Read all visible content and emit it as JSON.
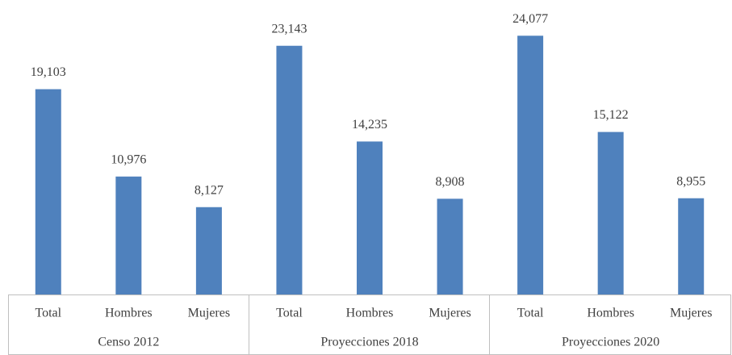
{
  "chart_data": {
    "type": "bar",
    "categories": [
      "Total",
      "Hombres",
      "Mujeres",
      "Total",
      "Hombres",
      "Mujeres",
      "Total",
      "Hombres",
      "Mujeres"
    ],
    "groups": [
      {
        "name": "Censo 2012",
        "size": 3
      },
      {
        "name": "Proyecciones 2018",
        "size": 3
      },
      {
        "name": "Proyecciones 2020",
        "size": 3
      }
    ],
    "values": [
      19103,
      10976,
      8127,
      23143,
      14235,
      8908,
      24077,
      15122,
      8955
    ],
    "value_labels": [
      "19,103",
      "10,976",
      "8,127",
      "23,143",
      "14,235",
      "8,908",
      "24,077",
      "15,122",
      "8,955"
    ],
    "color": "#4f81bd",
    "ylim": [
      0,
      25000
    ]
  }
}
